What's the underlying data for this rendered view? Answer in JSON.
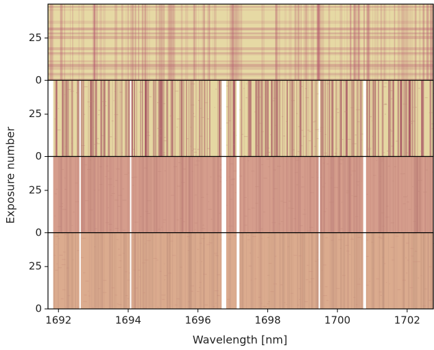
{
  "chart_data": {
    "type": "heatmap",
    "xlabel": "Wavelength [nm]",
    "ylabel": "Exposure number",
    "xlim": [
      1691.7,
      1702.75
    ],
    "xticks": [
      1692,
      1694,
      1696,
      1698,
      1700,
      1702
    ],
    "panels": [
      {
        "ylim": [
          0,
          45
        ],
        "yticks": [
          0,
          25
        ],
        "color": "#e6d9a4",
        "stripe_color": "#b5566e",
        "masked": []
      },
      {
        "ylim": [
          0,
          45
        ],
        "yticks": [
          0,
          25
        ],
        "color": "#e5d7a2",
        "stripe_color": "#9c3f58",
        "masked": [
          [
            1691.7,
            1691.85
          ],
          [
            1692.6,
            1692.64
          ],
          [
            1694.05,
            1694.09
          ],
          [
            1696.68,
            1696.81
          ],
          [
            1697.11,
            1697.19
          ],
          [
            1699.46,
            1699.5
          ],
          [
            1700.74,
            1700.82
          ]
        ]
      },
      {
        "ylim": [
          0,
          45
        ],
        "yticks": [
          0,
          25
        ],
        "color": "#d59d8c",
        "stripe_color": "#b77a74",
        "masked": [
          [
            1691.7,
            1691.85
          ],
          [
            1692.6,
            1692.64
          ],
          [
            1694.05,
            1694.09
          ],
          [
            1696.68,
            1696.81
          ],
          [
            1697.11,
            1697.19
          ],
          [
            1699.46,
            1699.5
          ],
          [
            1700.74,
            1700.82
          ]
        ]
      },
      {
        "ylim": [
          0,
          45
        ],
        "yticks": [
          0,
          25
        ],
        "color": "#dbab8e",
        "stripe_color": "#b98a78",
        "masked": [
          [
            1691.7,
            1691.85
          ],
          [
            1692.6,
            1692.64
          ],
          [
            1694.05,
            1694.09
          ],
          [
            1696.68,
            1696.81
          ],
          [
            1697.11,
            1697.19
          ],
          [
            1699.46,
            1699.5
          ],
          [
            1700.74,
            1700.82
          ]
        ]
      }
    ]
  }
}
